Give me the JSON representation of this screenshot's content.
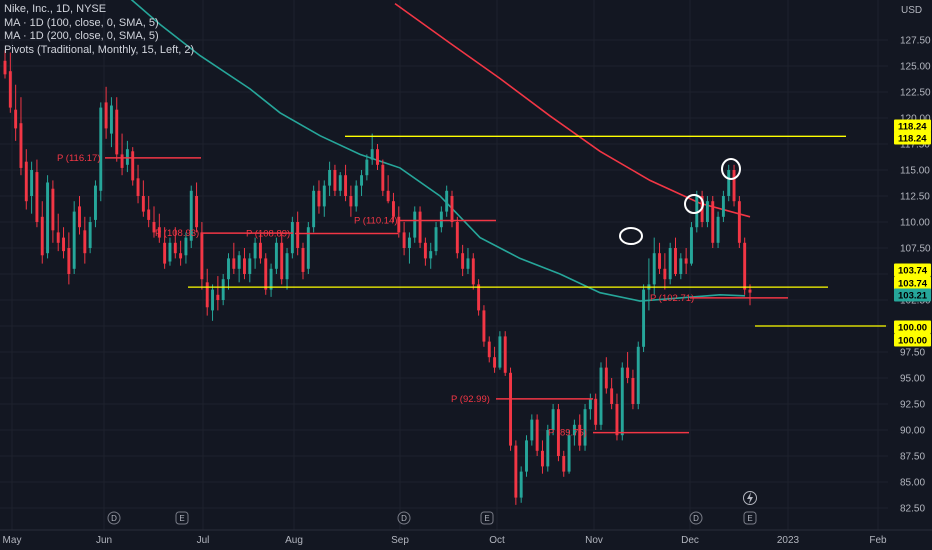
{
  "legend": {
    "title": "Nike, Inc., 1D, NYSE",
    "ma100": "MA · 1D (100, close, 0, SMA, 5)",
    "ma200": "MA · 1D (200, close, 0, SMA, 5)",
    "pivots": "Pivots (Traditional, Monthly, 15, Left, 2)"
  },
  "chart_data": {
    "type": "candlestick",
    "currency": "USD",
    "y_ticks": [
      82.5,
      85.0,
      87.5,
      90.0,
      92.5,
      95.0,
      97.5,
      100.0,
      102.5,
      105.0,
      107.5,
      110.0,
      112.5,
      115.0,
      117.5,
      120.0,
      122.5,
      125.0,
      127.5
    ],
    "y_tick_labels": [
      "82.50",
      "85.00",
      "87.50",
      "90.00",
      "92.50",
      "95.00",
      "97.50",
      "100.00",
      "102.50",
      "105.00",
      "107.50",
      "110.00",
      "112.50",
      "115.00",
      "117.50",
      "120.00",
      "122.50",
      "125.00",
      "127.50"
    ],
    "x_labels": [
      "May",
      "Jun",
      "Jul",
      "Aug",
      "Sep",
      "Oct",
      "Nov",
      "Dec",
      "2023",
      "Feb"
    ],
    "ylim": [
      81.5,
      130.5
    ],
    "price_badges": [
      {
        "value": 118.24,
        "label": "118.24",
        "color": "#ffff00"
      },
      {
        "value": 118.24,
        "label": "118.24",
        "color": "#ffff00"
      },
      {
        "value": 103.74,
        "label": "103.74",
        "color": "#ffff00"
      },
      {
        "value": 103.74,
        "label": "103.74",
        "color": "#ffff00"
      },
      {
        "value": 103.21,
        "label": "103.21",
        "color": "#26a69a"
      },
      {
        "value": 100.0,
        "label": "100.00",
        "color": "#ffff00"
      },
      {
        "value": 100.0,
        "label": "100.00",
        "color": "#ffff00"
      }
    ],
    "horizontal_lines": [
      {
        "value": 118.24,
        "color": "#ffff00"
      },
      {
        "value": 103.74,
        "color": "#ffff00"
      },
      {
        "value": 100.0,
        "color": "#ffff00"
      }
    ],
    "pivots": [
      {
        "label": "P (116.17)",
        "value": 116.17
      },
      {
        "label": "P (108.93)",
        "value": 108.93
      },
      {
        "label": "P (108.89)",
        "value": 108.89
      },
      {
        "label": "P (110.14)",
        "value": 110.14
      },
      {
        "label": "P (92.99)",
        "value": 92.99
      },
      {
        "label": "P (89.75)",
        "value": 89.75
      },
      {
        "label": "P (102.71)",
        "value": 102.71
      }
    ],
    "events": [
      {
        "type": "D",
        "label": "D"
      },
      {
        "type": "E",
        "label": "E"
      },
      {
        "type": "D",
        "label": "D"
      },
      {
        "type": "E",
        "label": "E"
      },
      {
        "type": "D",
        "label": "D"
      },
      {
        "type": "E",
        "label": "E"
      }
    ],
    "colors": {
      "up": "#26a69a",
      "down": "#f23645",
      "ma100": "#26a69a",
      "ma200": "#f23645",
      "pivot": "#f23645",
      "level": "#ffff00"
    },
    "series": [
      {
        "name": "MA · 1D (100, close, 0, SMA, 5)",
        "points": [
          [
            130.0,
            131.5
          ],
          [
            160.0,
            129.0
          ],
          [
            200.0,
            126.0
          ],
          [
            250.0,
            122.8
          ],
          [
            280.0,
            120.5
          ],
          [
            320.0,
            118.3
          ],
          [
            360.0,
            116.5
          ],
          [
            400.0,
            115.2
          ],
          [
            440.0,
            112.5
          ],
          [
            480.0,
            108.5
          ],
          [
            520.0,
            106.5
          ],
          [
            560.0,
            105.0
          ],
          [
            600.0,
            103.2
          ],
          [
            640.0,
            102.4
          ],
          [
            680.0,
            102.7
          ],
          [
            720.0,
            103.0
          ],
          [
            745.0,
            102.9
          ]
        ]
      },
      {
        "name": "MA · 1D (200, close, 0, SMA, 5)",
        "points": [
          [
            395.0,
            131.0
          ],
          [
            450.0,
            127.2
          ],
          [
            500.0,
            123.8
          ],
          [
            550.0,
            120.2
          ],
          [
            600.0,
            116.8
          ],
          [
            650.0,
            114.0
          ],
          [
            700.0,
            111.8
          ],
          [
            750.0,
            110.5
          ]
        ]
      }
    ],
    "candles": [
      [
        125.5,
        126.5,
        123.8,
        124.2
      ],
      [
        124.5,
        126.3,
        120.5,
        121.0
      ],
      [
        120.8,
        123.2,
        117.8,
        119.0
      ],
      [
        119.5,
        122.0,
        114.5,
        115.2
      ],
      [
        115.8,
        117.0,
        111.2,
        112.0
      ],
      [
        112.5,
        115.8,
        110.8,
        115.0
      ],
      [
        114.8,
        116.0,
        109.5,
        110.0
      ],
      [
        110.5,
        112.0,
        106.0,
        106.8
      ],
      [
        107.0,
        114.5,
        106.5,
        113.8
      ],
      [
        113.2,
        114.0,
        108.0,
        109.2
      ],
      [
        109.0,
        110.8,
        107.2,
        108.0
      ],
      [
        108.5,
        109.5,
        106.5,
        107.2
      ],
      [
        107.5,
        109.0,
        104.0,
        105.0
      ],
      [
        105.5,
        112.0,
        105.0,
        111.0
      ],
      [
        111.5,
        112.5,
        108.8,
        109.5
      ],
      [
        109.2,
        110.5,
        106.0,
        107.0
      ],
      [
        107.5,
        110.5,
        107.0,
        110.0
      ],
      [
        110.2,
        114.0,
        109.5,
        113.5
      ],
      [
        113.0,
        121.5,
        112.0,
        121.0
      ],
      [
        121.5,
        123.0,
        118.0,
        119.0
      ],
      [
        118.5,
        122.0,
        117.2,
        121.2
      ],
      [
        120.8,
        122.0,
        115.8,
        116.5
      ],
      [
        116.5,
        118.5,
        114.5,
        115.2
      ],
      [
        115.5,
        117.8,
        114.8,
        117.0
      ],
      [
        116.8,
        117.2,
        113.5,
        114.0
      ],
      [
        114.2,
        115.5,
        111.8,
        112.5
      ],
      [
        112.5,
        114.0,
        110.5,
        111.0
      ],
      [
        111.2,
        112.5,
        109.5,
        110.2
      ],
      [
        110.0,
        111.5,
        108.5,
        109.0
      ],
      [
        109.5,
        110.8,
        108.0,
        108.5
      ],
      [
        108.0,
        109.5,
        105.5,
        106.0
      ],
      [
        106.2,
        108.5,
        105.8,
        108.0
      ],
      [
        108.0,
        109.5,
        106.5,
        107.0
      ],
      [
        107.0,
        108.2,
        105.8,
        106.5
      ],
      [
        106.8,
        109.0,
        106.0,
        108.5
      ],
      [
        108.2,
        113.5,
        107.5,
        113.0
      ],
      [
        112.5,
        113.8,
        109.0,
        109.5
      ],
      [
        109.0,
        110.0,
        103.5,
        104.5
      ],
      [
        104.2,
        105.5,
        101.0,
        101.8
      ],
      [
        101.5,
        104.0,
        100.5,
        103.5
      ],
      [
        103.0,
        104.8,
        101.5,
        102.5
      ],
      [
        102.5,
        105.0,
        102.0,
        104.5
      ],
      [
        104.5,
        107.0,
        103.5,
        106.5
      ],
      [
        106.5,
        108.0,
        105.0,
        105.5
      ],
      [
        105.5,
        107.2,
        104.2,
        106.8
      ],
      [
        106.5,
        107.5,
        104.5,
        105.0
      ],
      [
        105.0,
        107.0,
        104.2,
        106.5
      ],
      [
        106.5,
        108.5,
        105.5,
        108.0
      ],
      [
        108.0,
        109.0,
        106.0,
        106.5
      ],
      [
        106.5,
        107.0,
        103.0,
        103.5
      ],
      [
        103.5,
        106.0,
        102.8,
        105.5
      ],
      [
        105.5,
        108.5,
        105.0,
        108.0
      ],
      [
        108.0,
        109.0,
        104.0,
        104.5
      ],
      [
        104.5,
        107.5,
        103.5,
        107.0
      ],
      [
        107.0,
        110.5,
        106.5,
        110.0
      ],
      [
        110.0,
        111.0,
        106.8,
        107.5
      ],
      [
        107.5,
        108.0,
        104.5,
        105.2
      ],
      [
        105.5,
        110.0,
        105.0,
        109.5
      ],
      [
        109.5,
        113.5,
        109.0,
        113.0
      ],
      [
        113.0,
        114.0,
        110.8,
        111.5
      ],
      [
        111.5,
        114.0,
        110.5,
        113.5
      ],
      [
        113.5,
        115.8,
        112.5,
        115.0
      ],
      [
        115.0,
        115.5,
        112.5,
        113.0
      ],
      [
        113.0,
        114.8,
        112.5,
        114.5
      ],
      [
        114.5,
        115.5,
        112.0,
        112.5
      ],
      [
        112.5,
        113.5,
        110.5,
        111.5
      ],
      [
        111.5,
        114.0,
        111.0,
        113.5
      ],
      [
        113.5,
        115.0,
        112.5,
        114.5
      ],
      [
        114.5,
        116.5,
        114.0,
        116.0
      ],
      [
        116.0,
        118.5,
        115.5,
        117.0
      ],
      [
        117.0,
        117.5,
        115.0,
        115.5
      ],
      [
        115.5,
        116.0,
        112.5,
        113.0
      ],
      [
        113.0,
        114.5,
        111.8,
        112.0
      ],
      [
        112.0,
        112.8,
        110.0,
        110.5
      ],
      [
        110.5,
        111.5,
        108.5,
        109.0
      ],
      [
        109.0,
        110.0,
        106.8,
        107.5
      ],
      [
        107.5,
        109.0,
        106.0,
        108.5
      ],
      [
        108.5,
        111.5,
        108.0,
        111.0
      ],
      [
        111.0,
        111.5,
        107.5,
        108.0
      ],
      [
        108.0,
        108.5,
        105.8,
        106.5
      ],
      [
        106.5,
        108.0,
        105.5,
        107.2
      ],
      [
        107.2,
        110.0,
        106.8,
        109.5
      ],
      [
        109.5,
        111.5,
        109.0,
        111.0
      ],
      [
        111.0,
        113.5,
        110.5,
        113.0
      ],
      [
        112.5,
        113.0,
        109.5,
        110.0
      ],
      [
        110.0,
        110.5,
        106.5,
        107.0
      ],
      [
        107.0,
        107.8,
        104.8,
        105.5
      ],
      [
        105.5,
        107.5,
        105.0,
        106.5
      ],
      [
        106.5,
        107.0,
        103.5,
        104.0
      ],
      [
        104.0,
        104.5,
        101.0,
        101.5
      ],
      [
        101.5,
        102.0,
        98.0,
        98.5
      ],
      [
        98.5,
        99.0,
        96.5,
        97.0
      ],
      [
        97.0,
        98.0,
        95.5,
        96.0
      ],
      [
        96.0,
        99.5,
        95.8,
        99.0
      ],
      [
        99.0,
        99.5,
        95.2,
        95.5
      ],
      [
        95.5,
        96.0,
        88.0,
        88.5
      ],
      [
        88.5,
        89.0,
        82.8,
        83.5
      ],
      [
        83.5,
        86.5,
        83.0,
        86.0
      ],
      [
        86.0,
        89.5,
        85.5,
        89.0
      ],
      [
        89.0,
        91.5,
        88.5,
        91.0
      ],
      [
        91.0,
        91.5,
        87.5,
        88.0
      ],
      [
        88.0,
        89.0,
        85.8,
        86.5
      ],
      [
        86.5,
        90.5,
        86.0,
        90.0
      ],
      [
        90.0,
        92.5,
        89.5,
        92.0
      ],
      [
        92.0,
        92.5,
        87.0,
        87.5
      ],
      [
        87.5,
        88.0,
        85.5,
        86.0
      ],
      [
        86.0,
        90.0,
        85.8,
        89.5
      ],
      [
        89.5,
        91.0,
        88.5,
        90.5
      ],
      [
        90.5,
        91.5,
        88.0,
        88.5
      ],
      [
        88.5,
        92.5,
        88.0,
        92.0
      ],
      [
        92.0,
        93.5,
        91.0,
        93.0
      ],
      [
        93.0,
        93.5,
        90.0,
        90.5
      ],
      [
        90.5,
        96.5,
        90.0,
        96.0
      ],
      [
        96.0,
        97.0,
        93.5,
        94.0
      ],
      [
        94.0,
        95.0,
        92.0,
        92.5
      ],
      [
        92.5,
        93.5,
        89.0,
        89.5
      ],
      [
        89.5,
        96.5,
        89.0,
        96.0
      ],
      [
        96.0,
        97.5,
        94.5,
        95.0
      ],
      [
        95.0,
        95.8,
        92.0,
        92.5
      ],
      [
        92.5,
        98.5,
        92.0,
        98.0
      ],
      [
        98.0,
        104.0,
        97.5,
        103.5
      ],
      [
        103.5,
        106.5,
        101.5,
        104.0
      ],
      [
        104.0,
        108.5,
        103.0,
        107.0
      ],
      [
        107.0,
        108.0,
        105.0,
        105.5
      ],
      [
        105.5,
        107.0,
        103.5,
        104.5
      ],
      [
        104.5,
        108.0,
        104.0,
        107.5
      ],
      [
        107.5,
        108.5,
        104.8,
        105.0
      ],
      [
        105.0,
        107.0,
        104.5,
        106.5
      ],
      [
        106.5,
        107.5,
        105.0,
        106.0
      ],
      [
        106.0,
        110.0,
        105.8,
        109.5
      ],
      [
        109.5,
        113.0,
        109.0,
        112.5
      ],
      [
        112.5,
        113.0,
        109.5,
        110.0
      ],
      [
        110.0,
        112.5,
        109.5,
        112.0
      ],
      [
        112.0,
        112.5,
        107.5,
        108.0
      ],
      [
        108.0,
        111.0,
        107.5,
        110.5
      ],
      [
        110.5,
        113.0,
        110.0,
        112.5
      ],
      [
        112.5,
        115.5,
        112.0,
        115.0
      ],
      [
        115.0,
        115.5,
        111.5,
        112.0
      ],
      [
        112.0,
        112.5,
        107.5,
        108.0
      ],
      [
        108.0,
        108.5,
        103.0,
        103.5
      ],
      [
        103.5,
        104.0,
        102.0,
        103.21
      ]
    ]
  }
}
